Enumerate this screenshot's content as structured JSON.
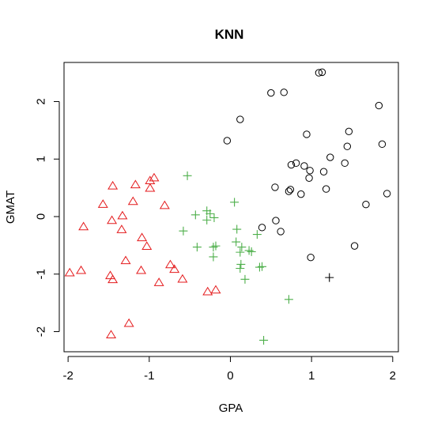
{
  "chart_data": {
    "type": "scatter",
    "title": "KNN",
    "xlabel": "GPA",
    "ylabel": "GMAT",
    "xlim": [
      -2.05,
      2.07
    ],
    "ylim": [
      -2.35,
      2.68
    ],
    "x_ticks": [
      -2,
      -1,
      0,
      1,
      2
    ],
    "y_ticks": [
      -2,
      -1,
      0,
      1,
      2
    ],
    "grid": false,
    "series": [
      {
        "marker": "circle",
        "color": "#000000",
        "points": [
          [
            1.09,
            2.5
          ],
          [
            1.13,
            2.51
          ],
          [
            0.5,
            2.15
          ],
          [
            0.66,
            2.16
          ],
          [
            1.83,
            1.93
          ],
          [
            0.12,
            1.69
          ],
          [
            -0.04,
            1.32
          ],
          [
            0.94,
            1.43
          ],
          [
            1.46,
            1.48
          ],
          [
            1.87,
            1.26
          ],
          [
            1.44,
            1.22
          ],
          [
            0.81,
            0.93
          ],
          [
            0.91,
            0.88
          ],
          [
            0.75,
            0.9
          ],
          [
            1.23,
            1.03
          ],
          [
            0.98,
            0.8
          ],
          [
            1.15,
            0.78
          ],
          [
            1.41,
            0.93
          ],
          [
            0.97,
            0.67
          ],
          [
            0.55,
            0.51
          ],
          [
            0.72,
            0.44
          ],
          [
            0.74,
            0.47
          ],
          [
            0.87,
            0.39
          ],
          [
            1.18,
            0.48
          ],
          [
            1.93,
            0.4
          ],
          [
            1.67,
            0.21
          ],
          [
            0.56,
            -0.07
          ],
          [
            0.39,
            -0.19
          ],
          [
            0.62,
            -0.26
          ],
          [
            1.53,
            -0.51
          ],
          [
            0.99,
            -0.71
          ]
        ]
      },
      {
        "marker": "plus",
        "color": "#000000",
        "points": [
          [
            1.22,
            -1.06
          ]
        ]
      },
      {
        "marker": "triangle",
        "color": "#e41a1c",
        "points": [
          [
            -0.94,
            0.67
          ],
          [
            -0.99,
            0.62
          ],
          [
            -1.17,
            0.55
          ],
          [
            -1.45,
            0.53
          ],
          [
            -0.99,
            0.49
          ],
          [
            -1.2,
            0.26
          ],
          [
            -1.57,
            0.21
          ],
          [
            -0.81,
            0.19
          ],
          [
            -1.33,
            0.01
          ],
          [
            -1.46,
            -0.07
          ],
          [
            -1.81,
            -0.18
          ],
          [
            -1.34,
            -0.23
          ],
          [
            -1.09,
            -0.37
          ],
          [
            -1.03,
            -0.52
          ],
          [
            -1.29,
            -0.77
          ],
          [
            -0.74,
            -0.84
          ],
          [
            -0.69,
            -0.92
          ],
          [
            -1.1,
            -0.94
          ],
          [
            -1.98,
            -0.98
          ],
          [
            -1.84,
            -0.94
          ],
          [
            -1.48,
            -1.03
          ],
          [
            -1.45,
            -1.1
          ],
          [
            -0.88,
            -1.15
          ],
          [
            -0.59,
            -1.09
          ],
          [
            -0.28,
            -1.31
          ],
          [
            -0.18,
            -1.28
          ],
          [
            -1.25,
            -1.86
          ],
          [
            -1.47,
            -2.06
          ]
        ]
      },
      {
        "marker": "plus",
        "color": "#4daf4a",
        "points": [
          [
            -0.53,
            0.71
          ],
          [
            0.05,
            0.25
          ],
          [
            -0.29,
            0.1
          ],
          [
            -0.43,
            0.03
          ],
          [
            -0.25,
            0.05
          ],
          [
            -0.2,
            -0.02
          ],
          [
            -0.29,
            -0.06
          ],
          [
            0.08,
            -0.22
          ],
          [
            -0.58,
            -0.25
          ],
          [
            0.33,
            -0.31
          ],
          [
            0.07,
            -0.44
          ],
          [
            -0.18,
            -0.51
          ],
          [
            -0.41,
            -0.53
          ],
          [
            -0.21,
            -0.53
          ],
          [
            0.14,
            -0.53
          ],
          [
            0.23,
            -0.59
          ],
          [
            0.12,
            -0.62
          ],
          [
            0.26,
            -0.61
          ],
          [
            -0.21,
            -0.7
          ],
          [
            0.13,
            -0.83
          ],
          [
            0.36,
            -0.88
          ],
          [
            0.39,
            -0.87
          ],
          [
            0.12,
            -0.9
          ],
          [
            0.18,
            -1.09
          ],
          [
            0.72,
            -1.44
          ],
          [
            0.41,
            -2.15
          ]
        ]
      }
    ]
  }
}
